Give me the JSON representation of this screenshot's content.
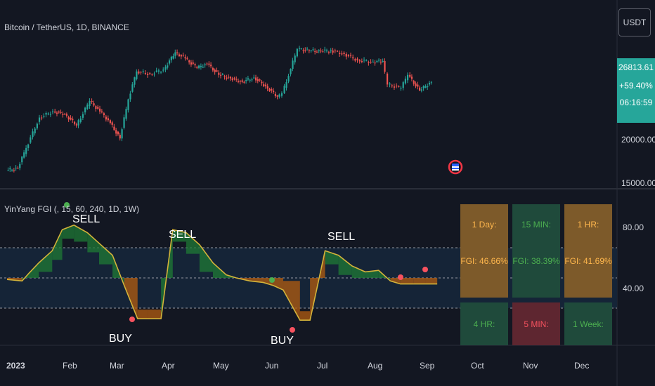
{
  "price_pane": {
    "symbol_title": "Bitcoin / TetherUS, 1D, BINANCE",
    "currency_button": "USDT",
    "last_price": "26813.61",
    "change": "+59.40%",
    "countdown": "06:16:59",
    "y_ticks": [
      "20000.00",
      "15000.00"
    ]
  },
  "indicator_pane": {
    "title": "YinYang FGI (, 15, 60, 240, 1D, 1W)",
    "y_ticks": [
      "80.00",
      "40.00"
    ],
    "signals": [
      {
        "label": "SELL",
        "kind": "sell"
      },
      {
        "label": "BUY",
        "kind": "buy"
      },
      {
        "label": "SELL",
        "kind": "sell"
      },
      {
        "label": "BUY",
        "kind": "buy"
      },
      {
        "label": "SELL",
        "kind": "sell"
      }
    ],
    "table": [
      {
        "title": "1 Day:",
        "value": "FGI: 46.66%",
        "tone": "orange"
      },
      {
        "title": "15 MIN:",
        "value": "FGI: 38.39%",
        "tone": "green"
      },
      {
        "title": "1 HR:",
        "value": "FGI: 41.69%",
        "tone": "orange"
      },
      {
        "title": "4 HR:",
        "value": "",
        "tone": "green"
      },
      {
        "title": "5 MIN:",
        "value": "",
        "tone": "red"
      },
      {
        "title": "1 Week:",
        "value": "",
        "tone": "green"
      }
    ]
  },
  "x_axis": [
    "2023",
    "Feb",
    "Mar",
    "Apr",
    "May",
    "Jun",
    "Jul",
    "Aug",
    "Sep",
    "Oct",
    "Nov",
    "Dec"
  ],
  "colors": {
    "background": "#131722",
    "candle_up": "#26a69a",
    "candle_down": "#ef5350",
    "fgi_line": "#d4b33a",
    "greed_fill": "#1f7a35",
    "fear_fill": "#b35c10",
    "price_pill": "#26a69a"
  },
  "chart_data": [
    {
      "type": "line",
      "title": "Bitcoin / TetherUS, 1D, BINANCE",
      "x": [
        "2023-01-01",
        "2023-01-08",
        "2023-01-13",
        "2023-01-21",
        "2023-01-29",
        "2023-02-05",
        "2023-02-12",
        "2023-02-20",
        "2023-02-26",
        "2023-03-03",
        "2023-03-10",
        "2023-03-15",
        "2023-03-20",
        "2023-03-28",
        "2023-04-05",
        "2023-04-12",
        "2023-04-18",
        "2023-04-25",
        "2023-05-01",
        "2023-05-08",
        "2023-05-15",
        "2023-05-22",
        "2023-05-29",
        "2023-06-05",
        "2023-06-12",
        "2023-06-15",
        "2023-06-20",
        "2023-06-24",
        "2023-07-01",
        "2023-07-08",
        "2023-07-14",
        "2023-07-22",
        "2023-07-30",
        "2023-08-07",
        "2023-08-14",
        "2023-08-17",
        "2023-08-25",
        "2023-08-29",
        "2023-09-05",
        "2023-09-12"
      ],
      "values": [
        16600,
        16900,
        19200,
        22700,
        23400,
        23100,
        21800,
        24600,
        23400,
        22400,
        20300,
        24800,
        28000,
        27700,
        28200,
        30200,
        29500,
        28400,
        28900,
        27600,
        27200,
        26800,
        27300,
        26300,
        25100,
        25500,
        28300,
        30600,
        30400,
        30300,
        30400,
        30000,
        29300,
        29100,
        29200,
        26500,
        26100,
        27600,
        25800,
        26800
      ],
      "y_ticks": [
        20000,
        15000
      ]
    },
    {
      "type": "line",
      "title": "YinYang FGI (, 15, 60, 240, 1D, 1W)",
      "x": [
        "2023-01-01",
        "2023-01-10",
        "2023-01-14",
        "2023-01-20",
        "2023-01-28",
        "2023-02-03",
        "2023-02-10",
        "2023-02-18",
        "2023-02-25",
        "2023-03-05",
        "2023-03-12",
        "2023-03-20",
        "2023-03-26",
        "2023-04-03",
        "2023-04-10",
        "2023-04-18",
        "2023-04-26",
        "2023-05-04",
        "2023-05-12",
        "2023-05-18",
        "2023-05-26",
        "2023-06-03",
        "2023-06-09",
        "2023-06-15",
        "2023-06-25",
        "2023-07-01",
        "2023-07-10",
        "2023-07-18",
        "2023-07-26",
        "2023-08-03",
        "2023-08-11",
        "2023-08-18",
        "2023-08-24",
        "2023-09-01",
        "2023-09-08",
        "2023-09-15"
      ],
      "series": [
        {
          "values": [
            49,
            48,
            53,
            60,
            68,
            82,
            85,
            80,
            73,
            65,
            45,
            23,
            23,
            23,
            82,
            80,
            72,
            60,
            52,
            50,
            48,
            47,
            45,
            42,
            22,
            22,
            68,
            65,
            58,
            54,
            55,
            48,
            46,
            46,
            46,
            46
          ]
        }
      ],
      "y_ticks": [
        80,
        40
      ],
      "reference_lines": [
        70,
        50,
        30
      ]
    }
  ]
}
